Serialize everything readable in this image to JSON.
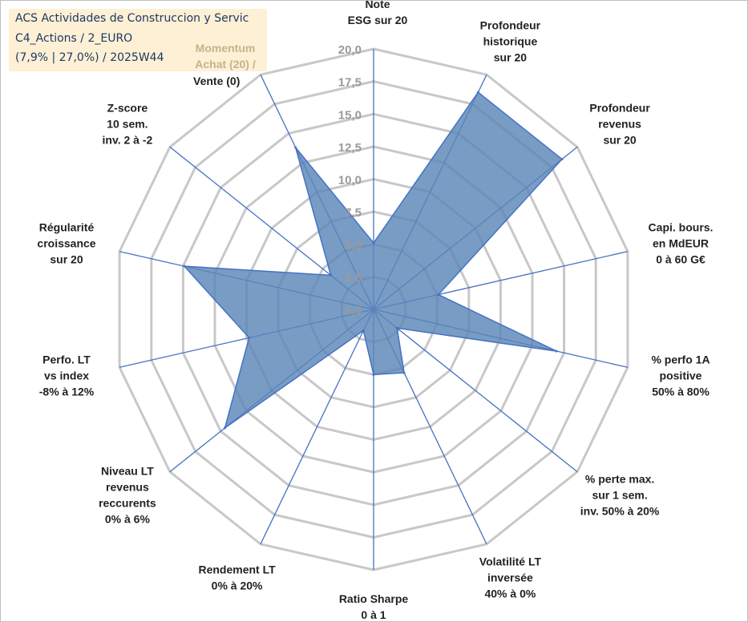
{
  "info": {
    "line1": "ACS Actividades de Construccion y Servic",
    "line2": "C4_Actions / 2_EURO",
    "line3": "(7,9% | 27,0%) / 2025W44",
    "momentum_line1": "Momentum",
    "momentum_line2": "Achat (20) /",
    "momentum_line3": "Vente (0)"
  },
  "colors": {
    "fill": "#5b86b8",
    "stroke": "#4472c4",
    "grid": "#c8c8c8",
    "box": "#fdf0d5"
  },
  "chart_data": {
    "type": "radar",
    "title": "",
    "rmax": 20,
    "ticks": [
      "0,0",
      "2,5",
      "5,0",
      "7,5",
      "10,0",
      "12,5",
      "15,0",
      "17,5",
      "20,0"
    ],
    "tick_values": [
      0,
      2.5,
      5,
      7.5,
      10,
      12.5,
      15,
      17.5,
      20
    ],
    "axes": [
      [
        "Note",
        "ESG sur 20"
      ],
      [
        "Profondeur",
        "historique",
        "sur 20"
      ],
      [
        "Profondeur",
        "revenus",
        "sur 20"
      ],
      [
        "Capi. bours.",
        "en MdEUR",
        "0 à 60 G€"
      ],
      [
        "% perfo 1A",
        "positive",
        "50% à 80%"
      ],
      [
        "% perte max.",
        "sur 1 sem.",
        "inv. 50% à 20%"
      ],
      [
        "Volatilité LT",
        "inversée",
        "40% à 0%"
      ],
      [
        "Ratio Sharpe",
        "0 à 1"
      ],
      [
        "Rendement LT",
        "0% à 20%"
      ],
      [
        "Niveau LT",
        "revenus",
        "reccurents",
        "0% à 6%"
      ],
      [
        "Perfo. LT",
        "vs index",
        "-8% à 12%"
      ],
      [
        "Régularité",
        "croissance",
        "sur 20"
      ],
      [
        "Z-score",
        "10 sem.",
        "inv. 2 à -2"
      ],
      [
        "Momentum",
        "Achat (20) /",
        "Vente (0)"
      ]
    ],
    "series": [
      {
        "values": [
          5.1,
          18.5,
          18.5,
          5.1,
          14.4,
          2.3,
          5.4,
          5.0,
          1.8,
          14.6,
          9.8,
          14.9,
          4.2,
          13.8
        ]
      }
    ]
  }
}
